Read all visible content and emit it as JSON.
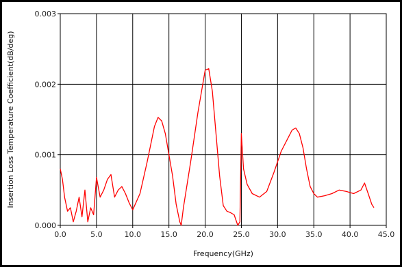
{
  "chart_data": {
    "type": "line",
    "title": "",
    "xlabel": "Frequency(GHz)",
    "ylabel": "Insertion Loss Temperature Coefficient(dB/deg)",
    "xlim": [
      0,
      45
    ],
    "ylim": [
      0,
      0.003
    ],
    "x_ticks": [
      "0.0",
      "5.0",
      "10.0",
      "15.0",
      "20.0",
      "25.0",
      "30.0",
      "35.0",
      "40.0",
      "45.0"
    ],
    "y_ticks": [
      "0.000",
      "0.001",
      "0.002",
      "0.003"
    ],
    "grid": true,
    "legend": "none",
    "line_color": "#ff0000",
    "series": [
      {
        "x": [
          0.0,
          0.3,
          0.6,
          1.0,
          1.4,
          1.8,
          2.2,
          2.6,
          3.0,
          3.4,
          3.8,
          4.2,
          4.6,
          5.0,
          5.5,
          6.0,
          6.5,
          7.0,
          7.5,
          8.0,
          8.5,
          9.0,
          9.5,
          10.0,
          11.0,
          12.0,
          13.0,
          13.5,
          14.0,
          14.5,
          15.0,
          15.5,
          16.0,
          16.5,
          16.7,
          17.0,
          18.0,
          19.0,
          19.5,
          20.0,
          20.5,
          21.0,
          21.5,
          22.0,
          22.5,
          23.0,
          23.5,
          24.0,
          24.5,
          24.8,
          25.0,
          25.3,
          25.8,
          26.5,
          27.5,
          28.5,
          29.5,
          30.5,
          31.5,
          32.0,
          32.5,
          33.0,
          33.5,
          34.0,
          34.5,
          35.0,
          35.5,
          36.5,
          37.5,
          38.5,
          39.5,
          40.5,
          41.5,
          42.0,
          42.5,
          43.0,
          43.3
        ],
        "y": [
          0.0008,
          0.00065,
          0.0004,
          0.0002,
          0.00025,
          5e-05,
          0.0002,
          0.0004,
          0.00012,
          0.0005,
          5e-05,
          0.00025,
          0.00015,
          0.00068,
          0.0004,
          0.0005,
          0.00065,
          0.00072,
          0.0004,
          0.0005,
          0.00055,
          0.00045,
          0.00032,
          0.00022,
          0.00045,
          0.0009,
          0.0014,
          0.00153,
          0.00148,
          0.0013,
          0.001,
          0.0007,
          0.0003,
          5e-05,
          0.0,
          0.00025,
          0.0009,
          0.0016,
          0.0019,
          0.0022,
          0.00222,
          0.0019,
          0.0013,
          0.0007,
          0.00028,
          0.0002,
          0.00018,
          0.00015,
          0.0,
          5e-05,
          0.0013,
          0.0008,
          0.00058,
          0.00045,
          0.0004,
          0.00048,
          0.00075,
          0.00105,
          0.00125,
          0.00135,
          0.00138,
          0.0013,
          0.0011,
          0.0008,
          0.00055,
          0.00045,
          0.0004,
          0.00042,
          0.00045,
          0.0005,
          0.00048,
          0.00045,
          0.0005,
          0.0006,
          0.00045,
          0.0003,
          0.00025
        ]
      }
    ]
  }
}
